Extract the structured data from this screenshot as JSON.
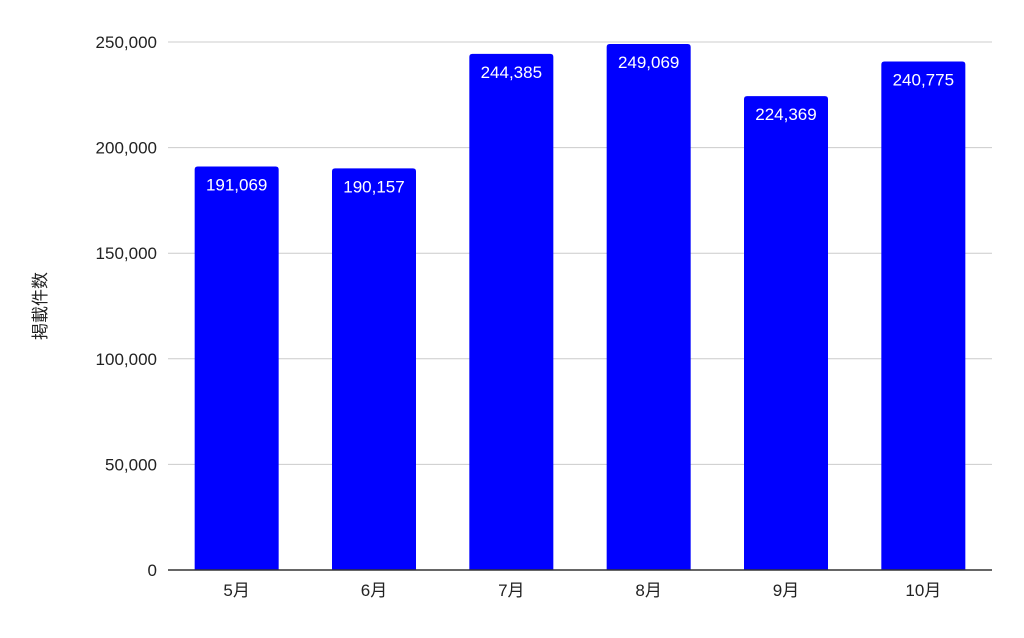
{
  "chart_data": {
    "type": "bar",
    "categories": [
      "5月",
      "6月",
      "7月",
      "8月",
      "9月",
      "10月"
    ],
    "values": [
      191069,
      190157,
      244385,
      249069,
      224369,
      240775
    ],
    "value_labels": [
      "191,069",
      "190,157",
      "244,385",
      "249,069",
      "224,369",
      "240,775"
    ],
    "title": "",
    "xlabel": "",
    "ylabel": "掲載件数",
    "ylim": [
      0,
      250000
    ],
    "yticks": [
      0,
      50000,
      100000,
      150000,
      200000,
      250000
    ],
    "ytick_labels": [
      "0",
      "50,000",
      "100,000",
      "150,000",
      "200,000",
      "250,000"
    ],
    "grid": true,
    "legend": "none",
    "colors": {
      "bar": "#0000ff",
      "grid": "#cccccc",
      "axis": "#333333",
      "tick_text": "#222222",
      "value_text": "#ffffff"
    }
  }
}
